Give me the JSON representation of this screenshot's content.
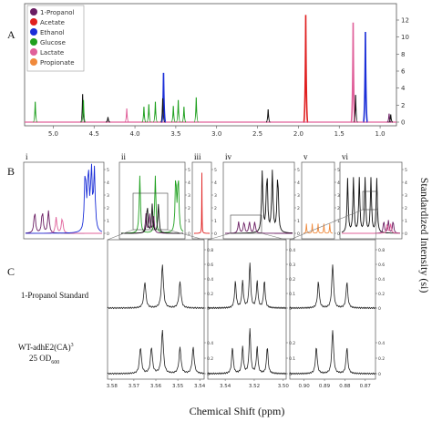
{
  "figure": {
    "panel_labels": [
      "A",
      "B",
      "C"
    ],
    "side_label": "Standardized Intensity (si)",
    "x_label": "Chemical Shift (ppm)"
  },
  "colors": {
    "1-Propanol": "#6b1e63",
    "Acetate": "#e02020",
    "Ethanol": "#1a2ed8",
    "Glucose": "#1fa01f",
    "Lactate": "#e0609a",
    "Propionate": "#f08a3c",
    "observed": "#111111"
  },
  "chart_data": [
    {
      "type": "line",
      "panel": "A",
      "legend": [
        "1-Propanol",
        "Acetate",
        "Ethanol",
        "Glucose",
        "Lactate",
        "Propionate"
      ],
      "legend_position": "top-left",
      "x_ticks": [
        "5.0",
        "4.5",
        "4.0",
        "3.5",
        "3.0",
        "2.5",
        "2.0",
        "1.5",
        "1.0"
      ],
      "xlim": [
        5.35,
        0.8
      ],
      "y_ticks": [
        "0",
        "2",
        "4",
        "6",
        "8",
        "10",
        "12"
      ],
      "ylim": [
        0,
        13.5
      ],
      "peaks": [
        {
          "series": "Glucose",
          "shift": 5.22,
          "height": 2.4
        },
        {
          "series": "observed",
          "shift": 4.64,
          "height": 3.3
        },
        {
          "series": "Glucose",
          "shift": 4.63,
          "height": 2.6
        },
        {
          "series": "observed",
          "shift": 4.33,
          "height": 0.6
        },
        {
          "series": "Lactate",
          "shift": 4.1,
          "height": 1.6
        },
        {
          "series": "Glucose",
          "shift": 3.89,
          "height": 1.8
        },
        {
          "series": "Glucose",
          "shift": 3.83,
          "height": 2.1
        },
        {
          "series": "Glucose",
          "shift": 3.75,
          "height": 2.4
        },
        {
          "series": "Ethanol",
          "shift": 3.65,
          "height": 5.8
        },
        {
          "series": "observed",
          "shift": 3.66,
          "height": 2.8
        },
        {
          "series": "Glucose",
          "shift": 3.53,
          "height": 1.9
        },
        {
          "series": "Glucose",
          "shift": 3.47,
          "height": 2.6
        },
        {
          "series": "Glucose",
          "shift": 3.4,
          "height": 1.8
        },
        {
          "series": "Glucose",
          "shift": 3.25,
          "height": 2.9
        },
        {
          "series": "observed",
          "shift": 2.37,
          "height": 1.5
        },
        {
          "series": "Acetate",
          "shift": 1.91,
          "height": 12.6
        },
        {
          "series": "Lactate",
          "shift": 1.33,
          "height": 11.7
        },
        {
          "series": "observed",
          "shift": 1.3,
          "height": 3.2
        },
        {
          "series": "Ethanol",
          "shift": 1.18,
          "height": 10.6
        },
        {
          "series": "1-Propanol",
          "shift": 0.89,
          "height": 1.0
        },
        {
          "series": "observed",
          "shift": 0.87,
          "height": 0.9
        }
      ]
    },
    {
      "type": "line",
      "panel": "B",
      "subpanels": [
        {
          "label": "i",
          "components": [
            "1-Propanol",
            "Lactate",
            "Ethanol"
          ]
        },
        {
          "label": "ii",
          "components": [
            "Glucose",
            "1-Propanol",
            "observed"
          ]
        },
        {
          "label": "iii",
          "components": [
            "Acetate"
          ]
        },
        {
          "label": "iv",
          "components": [
            "observed",
            "1-Propanol"
          ]
        },
        {
          "label": "v",
          "components": [
            "Propionate"
          ]
        },
        {
          "label": "vi",
          "components": [
            "observed",
            "1-Propanol",
            "Lactate"
          ]
        }
      ],
      "y_ticks": [
        "0",
        "1",
        "2",
        "3",
        "4",
        "5"
      ]
    },
    {
      "type": "line",
      "panel": "C",
      "rows": [
        {
          "label": "1-Propanol Standard"
        },
        {
          "label": "WT-adhE2(CA)",
          "superscript": "3",
          "line2": "25 OD",
          "subscript": "600"
        }
      ],
      "subpanels": [
        {
          "x_ticks": [
            "3.58",
            "3.57",
            "3.56",
            "3.55",
            "3.54"
          ],
          "xlim": [
            3.582,
            3.538
          ],
          "y_ticks": [
            "0",
            "0.2",
            "0.4",
            "0.6",
            "0.8"
          ],
          "standard_peaks": [
            3.565,
            3.557,
            3.549
          ],
          "sample_peaks": [
            3.567,
            3.562,
            3.557,
            3.549,
            3.543
          ]
        },
        {
          "x_ticks": [
            "3.54",
            "3.52",
            "3.50"
          ],
          "xlim": [
            3.552,
            3.498
          ],
          "y_ticks": [
            "0",
            "0.1",
            "0.2",
            "0.3",
            "0.4"
          ],
          "standard_peaks": [
            3.533,
            3.528,
            3.523,
            3.518,
            3.513
          ],
          "sample_peaks": [
            3.535,
            3.528,
            3.523,
            3.518,
            3.511
          ]
        },
        {
          "x_ticks": [
            "0.90",
            "0.89",
            "0.88",
            "0.87"
          ],
          "xlim": [
            0.907,
            0.865
          ],
          "y_ticks": [
            "0",
            "0.2",
            "0.4",
            "0.6",
            "0.8"
          ],
          "standard_peaks": [
            0.893,
            0.886,
            0.879
          ],
          "sample_peaks": [
            0.894,
            0.886,
            0.879
          ]
        }
      ]
    }
  ]
}
